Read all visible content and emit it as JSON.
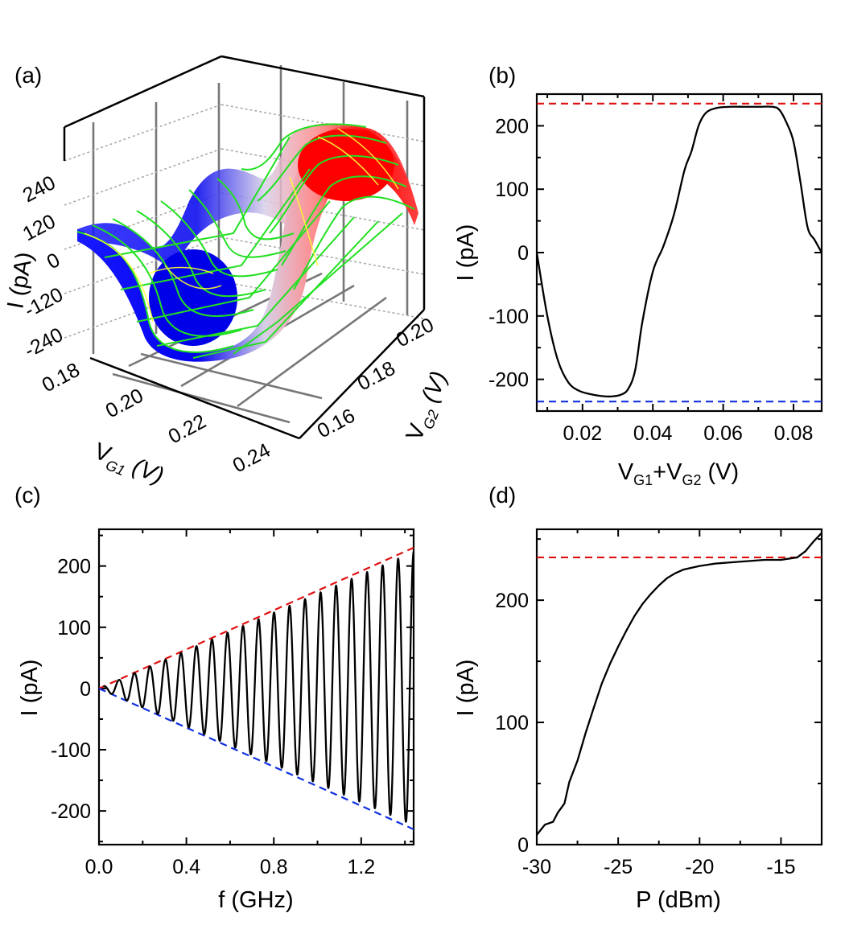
{
  "colors": {
    "red_ref": "#e01010",
    "blue_ref": "#1030e0",
    "curve": "#000000",
    "surface_high": "#ff0000",
    "surface_low": "#0000ff",
    "mesh_green": "#22e022",
    "mesh_yellow": "#ffff33"
  },
  "panels": {
    "a": {
      "label": "(a)"
    },
    "b": {
      "label": "(b)"
    },
    "c": {
      "label": "(c)"
    },
    "d": {
      "label": "(d)"
    }
  },
  "chart_data": [
    {
      "panel": "(a)",
      "type": "surface3d",
      "zlabel": "I (pA)",
      "xlabel_main": "V",
      "xlabel_sub": "G1",
      "xlabel_unit": "(V)",
      "ylabel_main": "V",
      "ylabel_sub": "G2",
      "ylabel_unit": "(V)",
      "xticks": [
        "0.18",
        "0.20",
        "0.22",
        "0.24"
      ],
      "yticks": [
        "0.16",
        "0.18",
        "0.20"
      ],
      "zticks": [
        "240",
        "120",
        "0",
        "-120",
        "-240"
      ],
      "xlim": [
        0.18,
        0.24
      ],
      "ylim": [
        0.15,
        0.21
      ],
      "zlim": [
        -240,
        240
      ]
    },
    {
      "panel": "(b)",
      "type": "line",
      "xlabel_main": "V",
      "xlabel_sub1": "G1",
      "xlabel_plus": "+V",
      "xlabel_sub2": "G2",
      "xlabel_unit": " (V)",
      "ylabel": "I (pA)",
      "xlim": [
        0.007,
        0.088
      ],
      "ylim": [
        -250,
        250
      ],
      "xticks": [
        0.02,
        0.04,
        0.06,
        0.08
      ],
      "xtick_labels": [
        "0.02",
        "0.04",
        "0.06",
        "0.08"
      ],
      "yticks": [
        -200,
        -100,
        0,
        100,
        200
      ],
      "ytick_labels": [
        "-200",
        "-100",
        "0",
        "100",
        "200"
      ],
      "ref_lines": [
        {
          "y": 235,
          "color": "red"
        },
        {
          "y": -235,
          "color": "blue"
        }
      ],
      "x": [
        0.007,
        0.01,
        0.013,
        0.016,
        0.019,
        0.022,
        0.025,
        0.028,
        0.031,
        0.033,
        0.035,
        0.037,
        0.04,
        0.043,
        0.046,
        0.049,
        0.051,
        0.053,
        0.055,
        0.058,
        0.062,
        0.066,
        0.07,
        0.074,
        0.076,
        0.078,
        0.08,
        0.082,
        0.084,
        0.086,
        0.088
      ],
      "y": [
        0,
        -100,
        -170,
        -205,
        -218,
        -223,
        -226,
        -227,
        -224,
        -215,
        -185,
        -110,
        -30,
        10,
        60,
        130,
        160,
        200,
        220,
        228,
        230,
        230,
        230,
        230,
        225,
        205,
        175,
        110,
        40,
        20,
        0
      ]
    },
    {
      "panel": "(c)",
      "type": "line",
      "xlabel": "f (GHz)",
      "ylabel": "I (pA)",
      "xlim": [
        0.0,
        1.44
      ],
      "ylim": [
        -255,
        260
      ],
      "xticks": [
        0.0,
        0.4,
        0.8,
        1.2
      ],
      "xtick_labels": [
        "0.0",
        "0.4",
        "0.8",
        "1.2"
      ],
      "yticks": [
        -200,
        -100,
        0,
        100,
        200
      ],
      "ytick_labels": [
        "-200",
        "-100",
        "0",
        "100",
        "200"
      ],
      "ref_lines": [
        {
          "x0": 0.0,
          "y0": 0,
          "x1": 1.44,
          "y1": 230,
          "color": "red"
        },
        {
          "x0": 0.0,
          "y0": 0,
          "x1": 1.44,
          "y1": -230,
          "color": "blue"
        }
      ],
      "oscillation": {
        "f_start": 0.02,
        "period": 0.071,
        "count": 20,
        "amplitude_fraction_of_envelope": 0.97
      }
    },
    {
      "panel": "(d)",
      "type": "line",
      "xlabel": "P (dBm)",
      "ylabel": "I (pA)",
      "xlim": [
        -30,
        -12.5
      ],
      "ylim": [
        0,
        258
      ],
      "xticks": [
        -30,
        -25,
        -20,
        -15
      ],
      "xtick_labels": [
        "-30",
        "-25",
        "-20",
        "-15"
      ],
      "yticks": [
        0,
        100,
        200
      ],
      "ytick_labels": [
        "0",
        "100",
        "200"
      ],
      "ref_lines": [
        {
          "y": 235,
          "color": "red"
        }
      ],
      "x": [
        -30,
        -29.5,
        -29,
        -28.7,
        -28.3,
        -28,
        -27.5,
        -27,
        -26.5,
        -26,
        -25.5,
        -25,
        -24.5,
        -24,
        -23.5,
        -23,
        -22.5,
        -22,
        -21.5,
        -21,
        -20,
        -19,
        -18,
        -17,
        -16,
        -15,
        -14,
        -13.5,
        -13,
        -12.5
      ],
      "y": [
        8,
        15,
        20,
        25,
        35,
        50,
        70,
        90,
        112,
        132,
        148,
        162,
        175,
        187,
        197,
        205,
        212,
        218,
        222,
        225,
        228,
        230,
        231,
        232,
        233,
        233,
        235,
        240,
        248,
        255
      ]
    }
  ]
}
